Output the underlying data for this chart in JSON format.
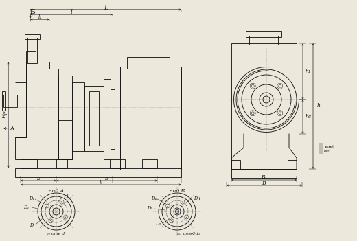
{
  "bg_color": "#ede8dc",
  "line_color": "#1a1a1a",
  "labels": {
    "L": "L",
    "l": "l",
    "l1": "l₁",
    "l2": "l₂",
    "l3": "l₃",
    "l4": "l₄",
    "h1": "h₁",
    "hc": "hс",
    "h": "h",
    "B1": "B₁",
    "B": "B",
    "D": "D",
    "D1": "D₁",
    "D2": "D₂",
    "Dl": "Dl",
    "D3": "D₃",
    "D4": "D₄",
    "D5": "D₅",
    "Dn": "Dн",
    "vid_A": "вид A",
    "vid_B": "вид Б",
    "B_mark": "Б",
    "A_mark": "A",
    "n_otv_d": "n отв d",
    "n1_otv_d1": "n₁ отвΦd₁",
    "lomb_d3": "ломб",
    "phi_d3": "Φd₃",
    "Hp": "Hр"
  }
}
